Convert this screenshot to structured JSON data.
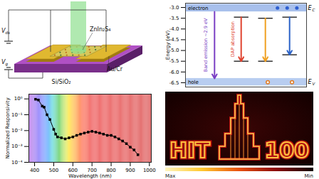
{
  "device": {
    "material": "ZnIn₂S₄",
    "electrode": "Au/Cr",
    "substrate": "Si/SiO₂",
    "vds": {
      "text": "V",
      "sub": "ds"
    },
    "vg": {
      "text": "V",
      "sub": "g"
    }
  },
  "energy_diagram": {
    "ylabel": "Energy (eV)",
    "ylim": [
      -6.7,
      -2.8
    ],
    "yticks": [
      {
        "value": -3,
        "label": "-3.0"
      },
      -3.5,
      {
        "value": -4,
        "label": "-4.0"
      },
      -4.5,
      {
        "value": -5,
        "label": "-5.0"
      },
      -5.5,
      {
        "value": -6,
        "label": "-6.0"
      },
      -6.5
    ],
    "conduction_band": {
      "label": {
        "text": "E",
        "sub": "C"
      },
      "carrier": "electron",
      "top": -2.85,
      "bottom": -3.2
    },
    "valence_band": {
      "label": {
        "text": "E",
        "sub": "V"
      },
      "carrier": "hole",
      "top": -6.3,
      "bottom": -6.65
    },
    "transitions": [
      {
        "label": "Band emission ~2.9 eV",
        "from": -3.2,
        "to": -6.3,
        "color": "#7a3fc4"
      },
      {
        "label": "DAP absorption",
        "from": -3.45,
        "to": -5.5,
        "color": "#e0432f"
      },
      {
        "from": -3.5,
        "to": -5.5,
        "color": "#f0a020"
      },
      {
        "from": -3.45,
        "to": -5.2,
        "color": "#2c63c8"
      }
    ]
  },
  "chart_data": {
    "type": "line",
    "xlabel": "Wavelength (nm)",
    "ylabel": "Normalized Responsivity",
    "x": [
      405,
      420,
      440,
      450,
      465,
      480,
      500,
      510,
      520,
      540,
      560,
      580,
      600,
      620,
      640,
      660,
      680,
      700,
      720,
      740,
      760,
      780,
      800,
      820,
      840,
      860,
      880,
      900,
      920,
      940
    ],
    "values": [
      0.95,
      0.85,
      0.35,
      0.3,
      0.1,
      0.05,
      0.012,
      0.006,
      0.004,
      0.0035,
      0.003,
      0.0035,
      0.004,
      0.005,
      0.006,
      0.007,
      0.008,
      0.009,
      0.008,
      0.007,
      0.006,
      0.005,
      0.005,
      0.004,
      0.003,
      0.0022,
      0.0015,
      0.0009,
      0.0006,
      0.0003
    ],
    "xlim": [
      370,
      1010
    ],
    "xticks": [
      400,
      500,
      600,
      700,
      800,
      900,
      1000
    ],
    "ylim": [
      0.0001,
      2
    ],
    "yticks": [
      {
        "value": 0.0001,
        "label": "10⁻⁴"
      },
      {
        "value": 0.001,
        "label": "10⁻³"
      },
      {
        "value": 0.01,
        "label": "10⁻²"
      },
      {
        "value": 0.1,
        "label": "10⁻¹"
      },
      {
        "value": 1,
        "label": "10⁰"
      }
    ],
    "log": "y",
    "color": "#000000",
    "marker": "square",
    "line_style": "solid"
  },
  "image": {
    "text": [
      "HIT",
      "100"
    ],
    "colorbar": {
      "max_label": "Max",
      "min_label": "Min"
    }
  }
}
